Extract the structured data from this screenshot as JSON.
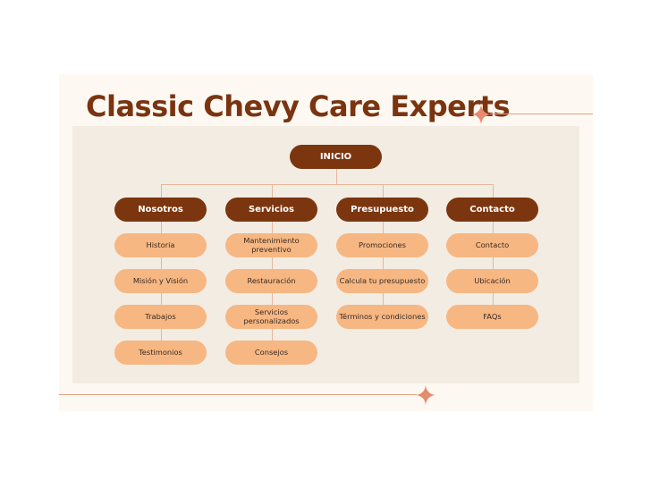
{
  "title": "Classic Chevy Care Experts",
  "root": "INICIO",
  "columns": [
    {
      "label": "Nosotros",
      "items": [
        "Historia",
        "Misión y Visión",
        "Trabajos",
        "Testimonios"
      ]
    },
    {
      "label": "Servicios",
      "items": [
        "Mantenimiento preventivo",
        "Restauración",
        "Servicios personalizados",
        "Consejos"
      ]
    },
    {
      "label": "Presupuesto",
      "items": [
        "Promociones",
        "Calcula tu presupuesto",
        "Términos y condiciones"
      ]
    },
    {
      "label": "Contacto",
      "items": [
        "Contacto",
        "Ubicación",
        "FAQs"
      ]
    }
  ],
  "colors": {
    "dark": "#7c360f",
    "light": "#f6b783",
    "line": "#e8b79b",
    "panel": "#f3ece3"
  }
}
